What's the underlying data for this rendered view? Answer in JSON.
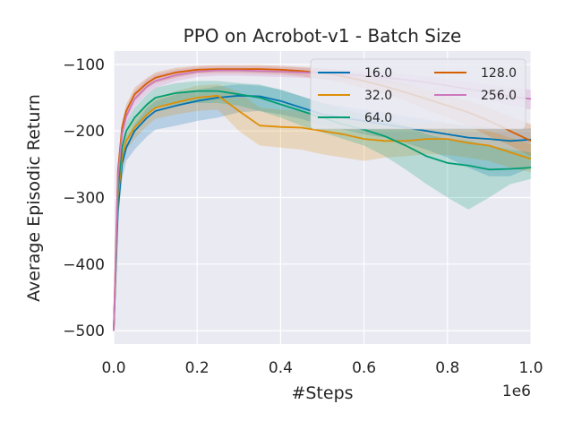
{
  "chart_data": {
    "type": "line",
    "title": "PPO on Acrobot-v1 - Batch Size",
    "xlabel": "#Steps",
    "ylabel": "Average Episodic Return",
    "x_offset_label": "1e6",
    "xlim": [
      0.0,
      1.0
    ],
    "ylim": [
      -520,
      -80
    ],
    "xticks": [
      0.0,
      0.2,
      0.4,
      0.6,
      0.8,
      1.0
    ],
    "xtick_labels": [
      "0.0",
      "0.2",
      "0.4",
      "0.6",
      "0.8",
      "1.0"
    ],
    "yticks": [
      -100,
      -200,
      -300,
      -400,
      -500
    ],
    "ytick_labels": [
      "−100",
      "−200",
      "−300",
      "−400",
      "−500"
    ],
    "grid": true,
    "legend_position": "top-right",
    "series": [
      {
        "name": "16.0",
        "color": "#0173b2",
        "x": [
          0.0,
          0.01,
          0.02,
          0.03,
          0.05,
          0.08,
          0.1,
          0.15,
          0.2,
          0.25,
          0.3,
          0.35,
          0.4,
          0.45,
          0.5,
          0.55,
          0.6,
          0.65,
          0.7,
          0.75,
          0.8,
          0.85,
          0.9,
          0.95,
          1.0
        ],
        "y": [
          -500,
          -320,
          -250,
          -225,
          -200,
          -180,
          -170,
          -162,
          -155,
          -150,
          -147,
          -148,
          -155,
          -165,
          -175,
          -180,
          -185,
          -190,
          -195,
          -200,
          -205,
          -210,
          -212,
          -215,
          -213
        ],
        "upper": [
          -500,
          -300,
          -232,
          -212,
          -190,
          -165,
          -155,
          -145,
          -138,
          -133,
          -130,
          -132,
          -138,
          -148,
          -158,
          -163,
          -168,
          -172,
          -178,
          -183,
          -188,
          -192,
          -195,
          -198,
          -196
        ],
        "lower": [
          -500,
          -340,
          -272,
          -245,
          -228,
          -208,
          -198,
          -192,
          -185,
          -180,
          -172,
          -170,
          -175,
          -182,
          -192,
          -198,
          -205,
          -210,
          -218,
          -228,
          -240,
          -255,
          -268,
          -268,
          -255
        ]
      },
      {
        "name": "32.0",
        "color": "#de8f05",
        "x": [
          0.0,
          0.01,
          0.02,
          0.03,
          0.05,
          0.08,
          0.1,
          0.15,
          0.2,
          0.25,
          0.3,
          0.35,
          0.4,
          0.45,
          0.5,
          0.55,
          0.6,
          0.65,
          0.7,
          0.75,
          0.8,
          0.85,
          0.9,
          0.95,
          1.0
        ],
        "y": [
          -500,
          -300,
          -240,
          -215,
          -195,
          -175,
          -165,
          -157,
          -150,
          -147,
          -170,
          -192,
          -194,
          -195,
          -200,
          -205,
          -212,
          -215,
          -215,
          -212,
          -212,
          -218,
          -222,
          -232,
          -242
        ],
        "upper": [
          -500,
          -285,
          -228,
          -203,
          -182,
          -160,
          -150,
          -140,
          -132,
          -130,
          -142,
          -165,
          -168,
          -170,
          -175,
          -180,
          -185,
          -190,
          -190,
          -188,
          -188,
          -195,
          -200,
          -210,
          -220
        ],
        "lower": [
          -500,
          -315,
          -255,
          -230,
          -212,
          -192,
          -182,
          -175,
          -170,
          -168,
          -200,
          -222,
          -225,
          -228,
          -235,
          -240,
          -245,
          -240,
          -238,
          -235,
          -236,
          -240,
          -245,
          -255,
          -262
        ]
      },
      {
        "name": "64.0",
        "color": "#029e73",
        "x": [
          0.0,
          0.01,
          0.02,
          0.03,
          0.05,
          0.08,
          0.1,
          0.15,
          0.2,
          0.25,
          0.3,
          0.35,
          0.4,
          0.45,
          0.5,
          0.55,
          0.6,
          0.65,
          0.7,
          0.75,
          0.8,
          0.85,
          0.9,
          0.95,
          1.0
        ],
        "y": [
          -500,
          -290,
          -225,
          -200,
          -180,
          -160,
          -150,
          -143,
          -140,
          -140,
          -145,
          -150,
          -160,
          -170,
          -180,
          -190,
          -198,
          -208,
          -222,
          -238,
          -248,
          -252,
          -258,
          -257,
          -255
        ],
        "upper": [
          -500,
          -278,
          -213,
          -188,
          -165,
          -145,
          -135,
          -128,
          -125,
          -125,
          -128,
          -130,
          -138,
          -148,
          -158,
          -168,
          -175,
          -182,
          -192,
          -205,
          -212,
          -215,
          -222,
          -228,
          -232
        ],
        "lower": [
          -500,
          -303,
          -238,
          -213,
          -195,
          -175,
          -165,
          -160,
          -158,
          -158,
          -162,
          -170,
          -180,
          -192,
          -202,
          -212,
          -222,
          -238,
          -258,
          -280,
          -300,
          -318,
          -300,
          -280,
          -272
        ]
      },
      {
        "name": "128.0",
        "color": "#d55e00",
        "x": [
          0.0,
          0.01,
          0.02,
          0.03,
          0.05,
          0.08,
          0.1,
          0.15,
          0.2,
          0.25,
          0.3,
          0.35,
          0.4,
          0.45,
          0.5,
          0.55,
          0.6,
          0.65,
          0.7,
          0.75,
          0.8,
          0.85,
          0.9,
          0.95,
          1.0
        ],
        "y": [
          -500,
          -260,
          -195,
          -170,
          -145,
          -128,
          -120,
          -112,
          -108,
          -107,
          -107,
          -107,
          -108,
          -110,
          -113,
          -118,
          -125,
          -133,
          -142,
          -152,
          -162,
          -172,
          -185,
          -200,
          -215
        ],
        "upper": [
          -500,
          -250,
          -185,
          -160,
          -135,
          -120,
          -112,
          -105,
          -102,
          -101,
          -101,
          -101,
          -102,
          -104,
          -106,
          -110,
          -116,
          -122,
          -130,
          -138,
          -146,
          -155,
          -165,
          -178,
          -190
        ],
        "lower": [
          -500,
          -272,
          -206,
          -182,
          -155,
          -136,
          -128,
          -120,
          -114,
          -113,
          -113,
          -114,
          -115,
          -118,
          -122,
          -128,
          -136,
          -145,
          -155,
          -168,
          -180,
          -192,
          -208,
          -222,
          -238
        ]
      },
      {
        "name": "256.0",
        "color": "#cc78bc",
        "x": [
          0.0,
          0.01,
          0.02,
          0.03,
          0.05,
          0.08,
          0.1,
          0.15,
          0.2,
          0.25,
          0.3,
          0.35,
          0.4,
          0.45,
          0.5,
          0.55,
          0.6,
          0.65,
          0.7,
          0.75,
          0.8,
          0.85,
          0.9,
          0.95,
          1.0
        ],
        "y": [
          -500,
          -270,
          -205,
          -178,
          -152,
          -133,
          -125,
          -116,
          -111,
          -109,
          -109,
          -110,
          -111,
          -112,
          -113,
          -115,
          -117,
          -120,
          -123,
          -127,
          -132,
          -137,
          -142,
          -148,
          -152
        ],
        "upper": [
          -500,
          -258,
          -193,
          -166,
          -140,
          -122,
          -115,
          -108,
          -104,
          -103,
          -103,
          -103,
          -104,
          -105,
          -106,
          -108,
          -110,
          -112,
          -115,
          -118,
          -122,
          -126,
          -130,
          -135,
          -138
        ],
        "lower": [
          -500,
          -282,
          -217,
          -190,
          -164,
          -144,
          -135,
          -125,
          -119,
          -117,
          -117,
          -118,
          -119,
          -120,
          -122,
          -124,
          -126,
          -129,
          -132,
          -137,
          -142,
          -148,
          -154,
          -162,
          -168
        ]
      }
    ]
  }
}
